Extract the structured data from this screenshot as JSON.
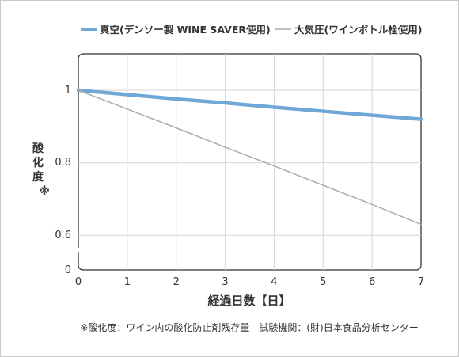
{
  "chart_data": {
    "type": "line",
    "x": [
      0,
      1,
      2,
      3,
      4,
      5,
      6,
      7
    ],
    "xlabel": "経過日数【日】",
    "ylabel": "酸化度※",
    "xlim": [
      0,
      7
    ],
    "ylim": [
      0.6,
      1.08
    ],
    "y_ticks": [
      "1",
      "0.8",
      "0.6"
    ],
    "y_zero_label": "0",
    "y_axis_break": true,
    "grid": true,
    "legend_position": "top",
    "series": [
      {
        "name": "真空(デンソー製 WINE SAVER使用)",
        "color": "#6fa8d6",
        "values": [
          1.0,
          0.988,
          0.976,
          0.965,
          0.953,
          0.942,
          0.931,
          0.92
        ]
      },
      {
        "name": "大気圧(ワインボトル栓使用)",
        "color": "#a9adb0",
        "values": [
          1.0,
          0.948,
          0.896,
          0.843,
          0.791,
          0.738,
          0.685,
          0.63
        ]
      }
    ],
    "note": "※酸化度：ワイン内の酸化防止剤残存量　試験機関：(財)日本食品分析センター"
  }
}
